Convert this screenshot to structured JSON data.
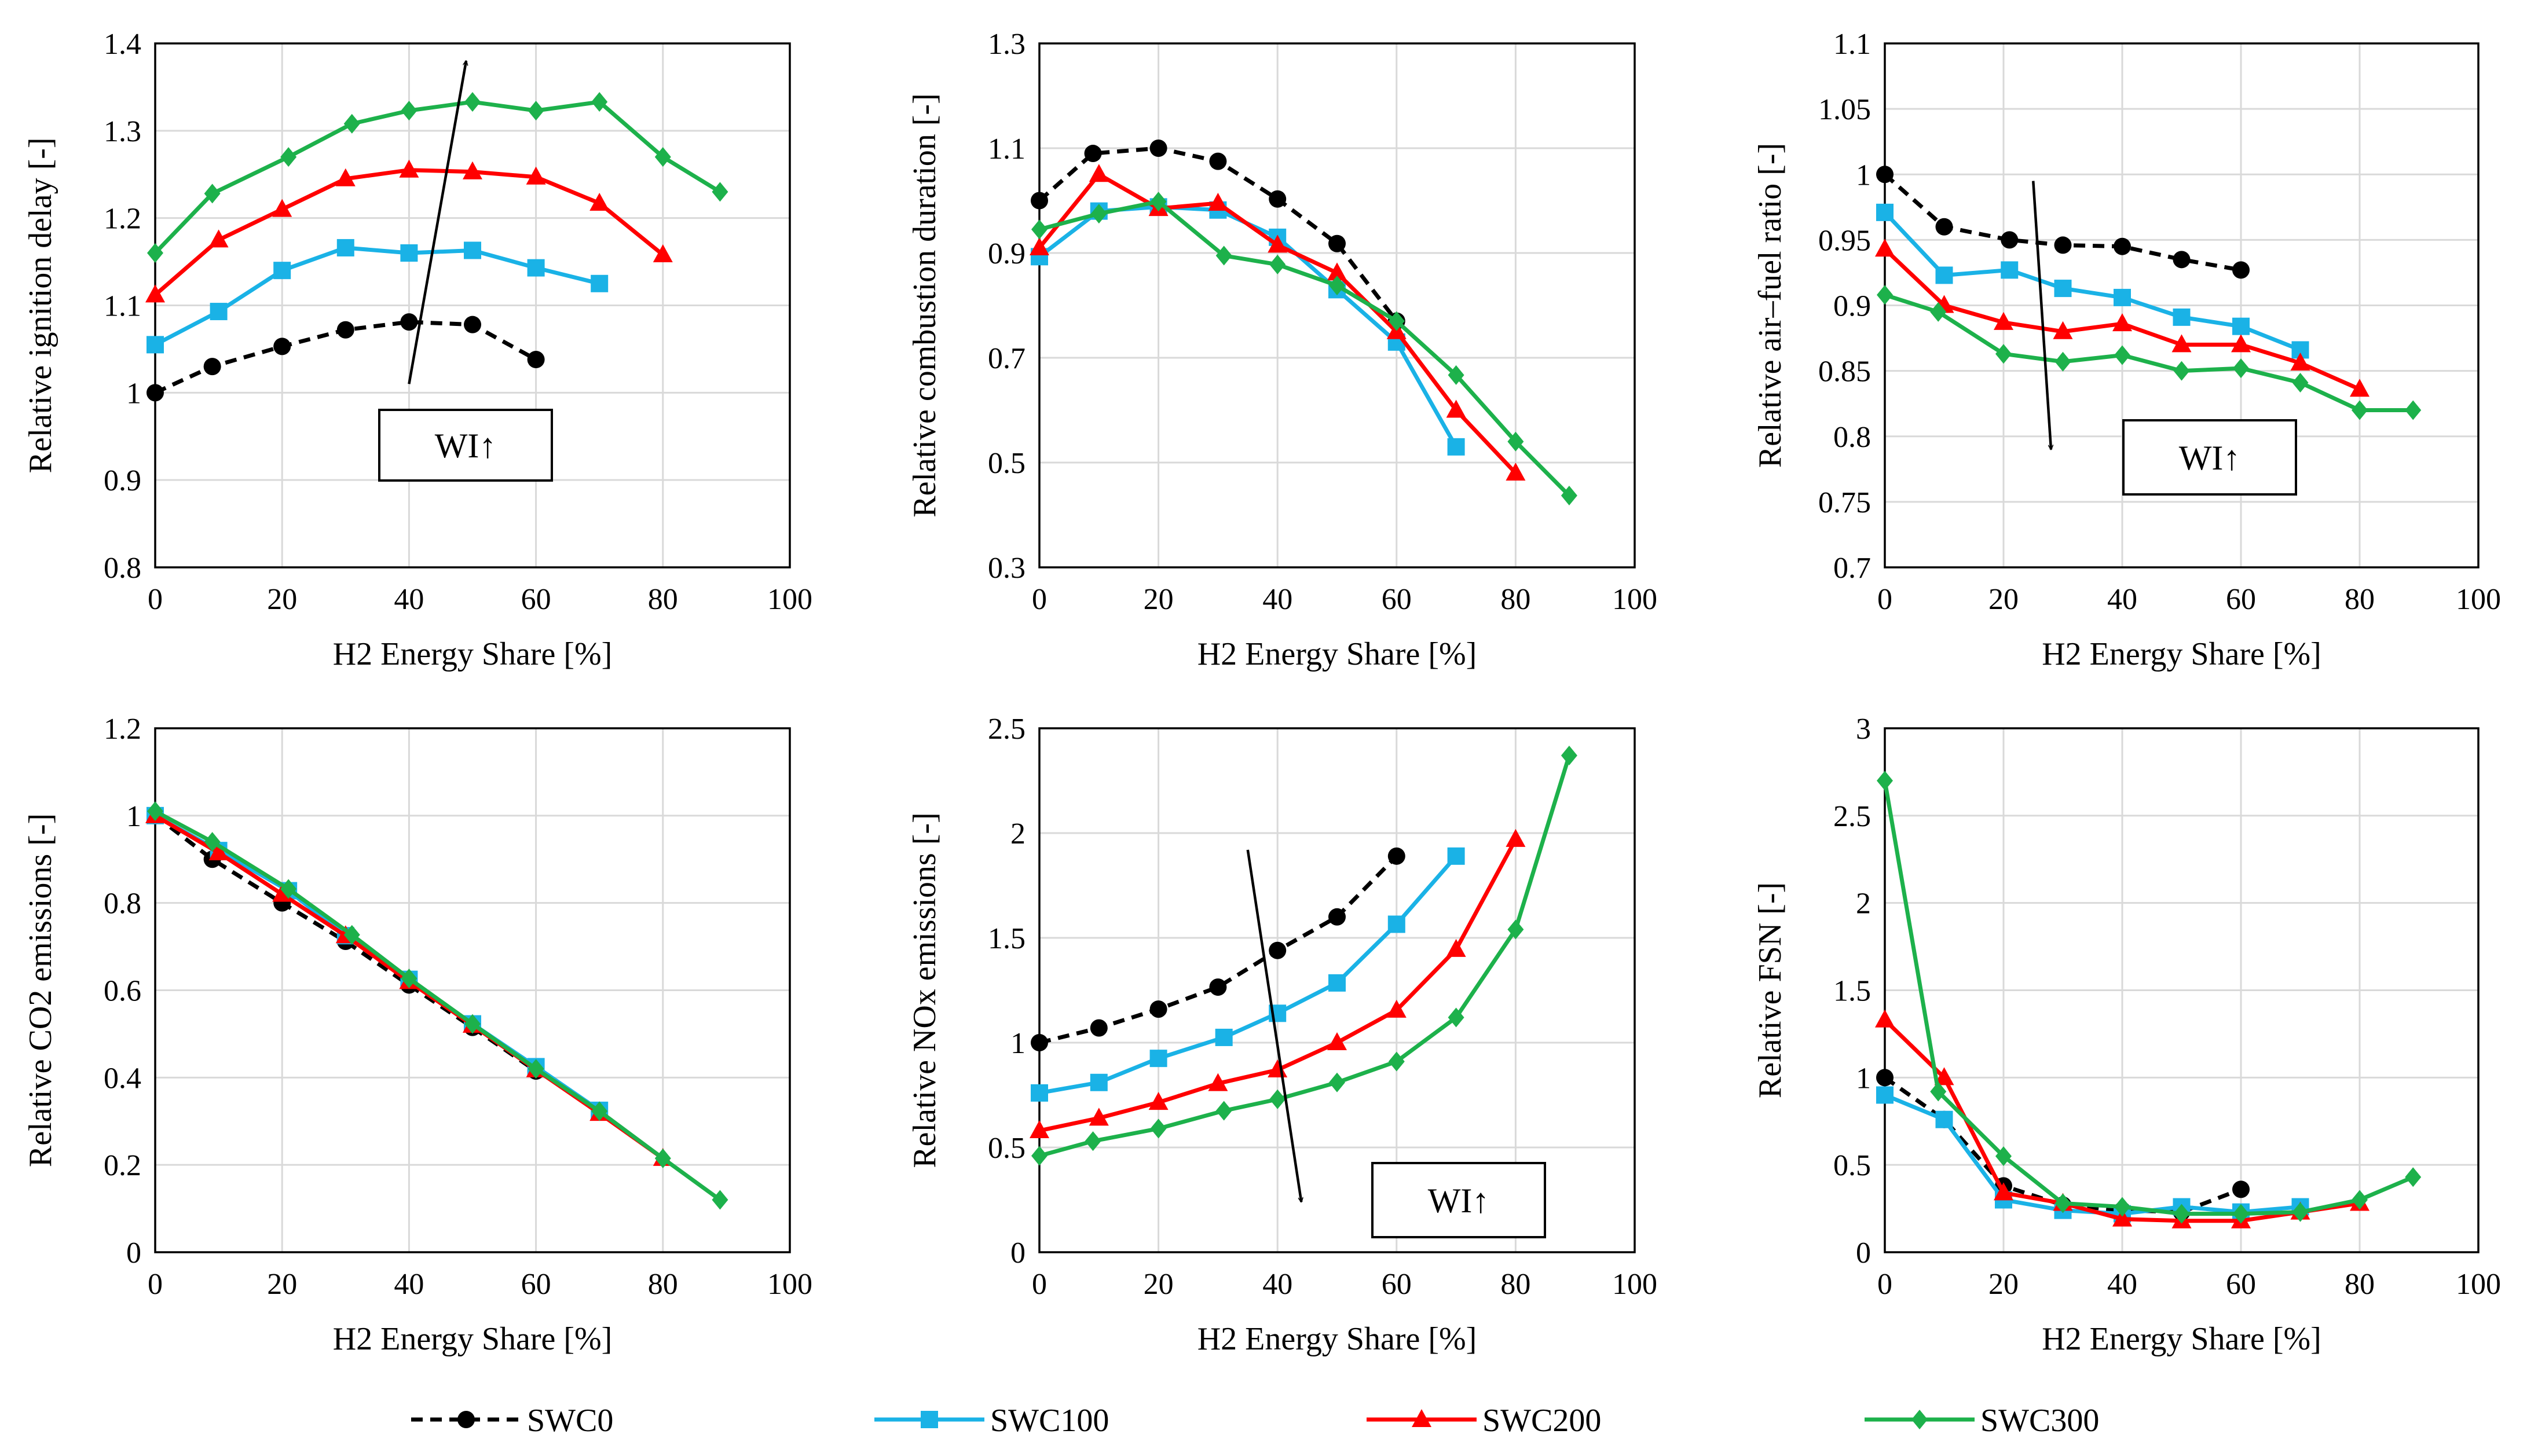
{
  "legend": [
    {
      "name": "SWC0",
      "color": "#000000",
      "marker": "circle",
      "dash": true
    },
    {
      "name": "SWC100",
      "color": "#1AB2E6",
      "marker": "square",
      "dash": false
    },
    {
      "name": "SWC200",
      "color": "#FF0000",
      "marker": "triangle",
      "dash": false
    },
    {
      "name": "SWC300",
      "color": "#1DB14B",
      "marker": "diamond",
      "dash": false
    }
  ],
  "chart_data": [
    {
      "type": "line",
      "xlabel": "H2 Energy Share [%]",
      "ylabel": "Relative ignition delay [-]",
      "xlim": [
        0,
        100
      ],
      "ylim": [
        0.8,
        1.4
      ],
      "xticks": [
        "0",
        "20",
        "40",
        "60",
        "80",
        "100"
      ],
      "yticks": [
        "0.8",
        "0.9",
        "1",
        "1.1",
        "1.2",
        "1.3",
        "1.4"
      ],
      "annotation": "WI↑",
      "arrow": {
        "from": [
          40,
          1.01
        ],
        "to": [
          49,
          1.38
        ]
      },
      "series": [
        {
          "name": "SWC0",
          "x": [
            0,
            9,
            20,
            30,
            40,
            50,
            60
          ],
          "y": [
            1.0,
            1.03,
            1.053,
            1.072,
            1.081,
            1.078,
            1.038
          ]
        },
        {
          "name": "SWC100",
          "x": [
            0,
            10,
            20,
            30,
            40,
            50,
            60,
            70
          ],
          "y": [
            1.055,
            1.093,
            1.14,
            1.166,
            1.16,
            1.163,
            1.143,
            1.125
          ]
        },
        {
          "name": "SWC200",
          "x": [
            0,
            10,
            20,
            30,
            40,
            50,
            60,
            70,
            80
          ],
          "y": [
            1.112,
            1.175,
            1.21,
            1.245,
            1.255,
            1.253,
            1.247,
            1.217,
            1.158
          ]
        },
        {
          "name": "SWC300",
          "x": [
            0,
            9,
            21,
            31,
            40,
            50,
            60,
            70,
            80,
            89
          ],
          "y": [
            1.16,
            1.228,
            1.27,
            1.308,
            1.323,
            1.333,
            1.323,
            1.333,
            1.27,
            1.23
          ]
        }
      ]
    },
    {
      "type": "line",
      "xlabel": "H2 Energy Share [%]",
      "ylabel": "Relative combustion duration [-]",
      "xlim": [
        0,
        100
      ],
      "ylim": [
        0.3,
        1.3
      ],
      "xticks": [
        "0",
        "20",
        "40",
        "60",
        "80",
        "100"
      ],
      "yticks": [
        "0.3",
        "0.5",
        "0.7",
        "0.9",
        "1.1",
        "1.3"
      ],
      "series": [
        {
          "name": "SWC0",
          "x": [
            0,
            9,
            20,
            30,
            40,
            50,
            60
          ],
          "y": [
            1.0,
            1.09,
            1.1,
            1.075,
            1.003,
            0.918,
            0.77
          ]
        },
        {
          "name": "SWC100",
          "x": [
            0,
            10,
            20,
            30,
            40,
            50,
            60,
            70
          ],
          "y": [
            0.893,
            0.98,
            0.988,
            0.982,
            0.93,
            0.83,
            0.73,
            0.53
          ]
        },
        {
          "name": "SWC200",
          "x": [
            0,
            10,
            20,
            30,
            40,
            50,
            60,
            70,
            80
          ],
          "y": [
            0.91,
            1.05,
            0.985,
            0.995,
            0.915,
            0.862,
            0.75,
            0.6,
            0.48
          ]
        },
        {
          "name": "SWC300",
          "x": [
            0,
            10,
            20,
            31,
            40,
            50,
            60,
            70,
            80,
            89
          ],
          "y": [
            0.945,
            0.975,
            0.998,
            0.895,
            0.878,
            0.838,
            0.77,
            0.667,
            0.54,
            0.437
          ]
        }
      ]
    },
    {
      "type": "line",
      "xlabel": "H2 Energy Share [%]",
      "ylabel": "Relative air–fuel ratio [-]",
      "xlim": [
        0,
        100
      ],
      "ylim": [
        0.7,
        1.1
      ],
      "xticks": [
        "0",
        "20",
        "40",
        "60",
        "80",
        "100"
      ],
      "yticks": [
        "0.7",
        "0.75",
        "0.8",
        "0.85",
        "0.9",
        "0.95",
        "1",
        "1.05",
        "1.1"
      ],
      "annotation": "WI↑",
      "arrow": {
        "from": [
          25,
          0.995
        ],
        "to": [
          28,
          0.79
        ]
      },
      "series": [
        {
          "name": "SWC0",
          "x": [
            0,
            10,
            21,
            30,
            40,
            50,
            60
          ],
          "y": [
            1.0,
            0.96,
            0.95,
            0.946,
            0.945,
            0.935,
            0.927
          ]
        },
        {
          "name": "SWC100",
          "x": [
            0,
            10,
            21,
            30,
            40,
            50,
            60,
            70
          ],
          "y": [
            0.971,
            0.923,
            0.927,
            0.913,
            0.906,
            0.891,
            0.884,
            0.866
          ]
        },
        {
          "name": "SWC200",
          "x": [
            0,
            10,
            20,
            30,
            40,
            50,
            60,
            70,
            80
          ],
          "y": [
            0.943,
            0.9,
            0.887,
            0.88,
            0.886,
            0.87,
            0.87,
            0.856,
            0.836
          ]
        },
        {
          "name": "SWC300",
          "x": [
            0,
            9,
            20,
            30,
            40,
            50,
            60,
            70,
            80,
            89
          ],
          "y": [
            0.908,
            0.895,
            0.863,
            0.857,
            0.862,
            0.85,
            0.852,
            0.841,
            0.82,
            0.82
          ]
        }
      ]
    },
    {
      "type": "line",
      "xlabel": "H2 Energy Share [%]",
      "ylabel": "Relative CO2 emissions [-]",
      "xlim": [
        0,
        100
      ],
      "ylim": [
        0,
        1.2
      ],
      "xticks": [
        "0",
        "20",
        "40",
        "60",
        "80",
        "100"
      ],
      "yticks": [
        "0",
        "0.2",
        "0.4",
        "0.6",
        "0.8",
        "1",
        "1.2"
      ],
      "series": [
        {
          "name": "SWC0",
          "x": [
            0,
            9,
            20,
            30,
            40,
            50,
            60
          ],
          "y": [
            1.0,
            0.9,
            0.8,
            0.712,
            0.612,
            0.515,
            0.415
          ]
        },
        {
          "name": "SWC100",
          "x": [
            0,
            10,
            21,
            30,
            40,
            50,
            60,
            70
          ],
          "y": [
            1.0,
            0.92,
            0.828,
            0.725,
            0.625,
            0.523,
            0.425,
            0.325
          ]
        },
        {
          "name": "SWC200",
          "x": [
            0,
            10,
            20,
            30,
            40,
            50,
            60,
            70,
            80
          ],
          "y": [
            1.0,
            0.915,
            0.82,
            0.725,
            0.62,
            0.52,
            0.418,
            0.318,
            0.215
          ]
        },
        {
          "name": "SWC300",
          "x": [
            0,
            9,
            21,
            31,
            40,
            50,
            60,
            70,
            80,
            89
          ],
          "y": [
            1.01,
            0.94,
            0.832,
            0.727,
            0.627,
            0.523,
            0.42,
            0.323,
            0.215,
            0.12
          ]
        }
      ]
    },
    {
      "type": "line",
      "xlabel": "H2 Energy Share [%]",
      "ylabel": "Relative NOx emissions [-]",
      "xlim": [
        0,
        100
      ],
      "ylim": [
        0,
        2.5
      ],
      "xticks": [
        "0",
        "20",
        "40",
        "60",
        "80",
        "100"
      ],
      "yticks": [
        "0",
        "0.5",
        "1",
        "1.5",
        "2",
        "2.5"
      ],
      "annotation": "WI↑",
      "arrow": {
        "from": [
          35,
          1.92
        ],
        "to": [
          44,
          0.24
        ]
      },
      "series": [
        {
          "name": "SWC0",
          "x": [
            0,
            10,
            20,
            30,
            40,
            50,
            60
          ],
          "y": [
            1.0,
            1.07,
            1.16,
            1.265,
            1.44,
            1.6,
            1.89
          ]
        },
        {
          "name": "SWC100",
          "x": [
            0,
            10,
            20,
            31,
            40,
            50,
            60,
            70
          ],
          "y": [
            0.76,
            0.81,
            0.925,
            1.025,
            1.14,
            1.285,
            1.565,
            1.89
          ]
        },
        {
          "name": "SWC200",
          "x": [
            0,
            10,
            20,
            30,
            40,
            50,
            60,
            70,
            80
          ],
          "y": [
            0.58,
            0.64,
            0.715,
            0.805,
            0.87,
            1.0,
            1.155,
            1.445,
            1.97
          ]
        },
        {
          "name": "SWC300",
          "x": [
            0,
            9,
            20,
            31,
            40,
            50,
            60,
            70,
            80,
            89
          ],
          "y": [
            0.46,
            0.53,
            0.59,
            0.675,
            0.73,
            0.81,
            0.91,
            1.12,
            1.54,
            2.37
          ]
        }
      ]
    },
    {
      "type": "line",
      "xlabel": "H2 Energy Share [%]",
      "ylabel": "Relative FSN [-]",
      "xlim": [
        0,
        100
      ],
      "ylim": [
        0,
        3
      ],
      "xticks": [
        "0",
        "20",
        "40",
        "60",
        "80",
        "100"
      ],
      "yticks": [
        "0",
        "0.5",
        "1",
        "1.5",
        "2",
        "2.5",
        "3"
      ],
      "series": [
        {
          "name": "SWC0",
          "x": [
            0,
            10,
            20,
            30,
            40,
            50,
            60
          ],
          "y": [
            1.0,
            0.76,
            0.38,
            0.27,
            0.24,
            0.23,
            0.36
          ]
        },
        {
          "name": "SWC100",
          "x": [
            0,
            10,
            20,
            30,
            40,
            50,
            60,
            70
          ],
          "y": [
            0.9,
            0.76,
            0.3,
            0.24,
            0.22,
            0.26,
            0.23,
            0.26
          ]
        },
        {
          "name": "SWC200",
          "x": [
            0,
            10,
            20,
            30,
            40,
            50,
            60,
            70,
            80
          ],
          "y": [
            1.33,
            1.0,
            0.34,
            0.28,
            0.19,
            0.18,
            0.18,
            0.23,
            0.28
          ]
        },
        {
          "name": "SWC300",
          "x": [
            0,
            9,
            20,
            30,
            40,
            50,
            60,
            70,
            80,
            89
          ],
          "y": [
            2.7,
            0.92,
            0.55,
            0.28,
            0.26,
            0.22,
            0.22,
            0.23,
            0.3,
            0.43
          ]
        }
      ]
    }
  ]
}
